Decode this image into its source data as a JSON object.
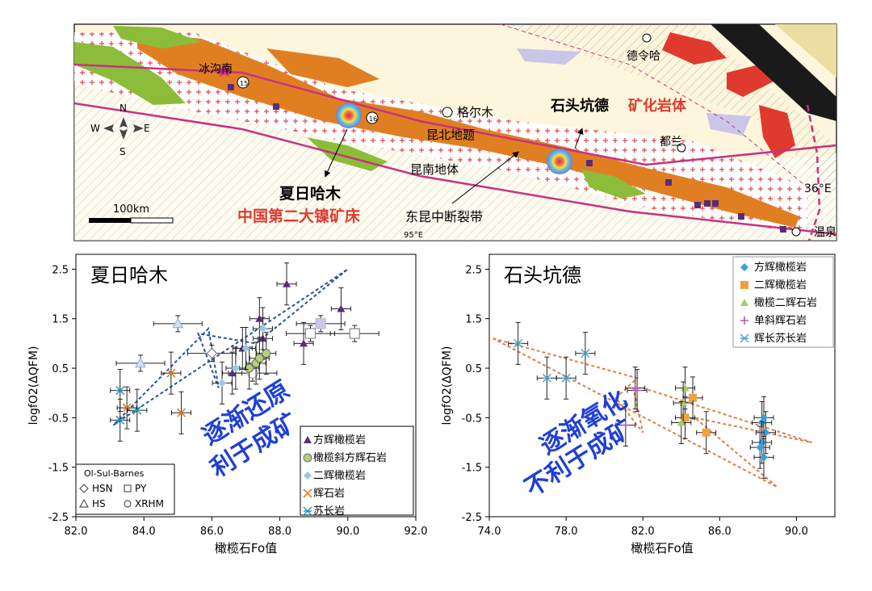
{
  "map": {
    "labels": {
      "binggounan": "冰沟南",
      "delingha": "德令哈",
      "geermu": "格尔木",
      "kunbei": "昆北地题",
      "kunnan": "昆南地体",
      "dulan": "都兰",
      "wenquan": "温泉",
      "shitoukengde": "石头坑德",
      "mineralized": "矿化岩体",
      "xiarihamu": "夏日哈木",
      "second_nickel": "中国第二大镍矿床",
      "fault": "东昆中断裂带",
      "lat": "36°E",
      "lon": "95°E",
      "scale": "100km",
      "n": "N",
      "s": "S",
      "e": "E",
      "w": "W",
      "num15": "15",
      "num16": "16"
    }
  },
  "colors": {
    "orange": "#e07f22",
    "green": "#8cbd3a",
    "red": "#e03a2e",
    "purple": "#5b2b7a",
    "blue_dash": "#2a4fa0",
    "orange_dash": "#e07f4a",
    "magenta": "#c8327e",
    "arrow_text": "#1f3fd6",
    "cream": "#fdf6dc"
  },
  "chart_data": [
    {
      "type": "scatter",
      "title": "夏日哈木",
      "xlabel": "橄榄石Fo值",
      "ylabel": "logfO2(ΔQFM)",
      "xlim": [
        82.0,
        92.0
      ],
      "ylim": [
        -2.5,
        2.8
      ],
      "xticks": [
        "82.0",
        "84.0",
        "86.0",
        "88.0",
        "90.0",
        "92.0"
      ],
      "yticks": [
        "2.5",
        "1.5",
        "0.5",
        "-0.5",
        "-1.5",
        "-2.5"
      ],
      "annotation": [
        "逐渐还原",
        "利于成矿"
      ],
      "legend": [
        "方辉橄榄岩",
        "橄榄斜方辉石岩",
        "二辉橄榄岩",
        "辉石岩",
        "苏长岩"
      ],
      "ref_legend": {
        "title": "Ol-Sul-Barnes",
        "items": [
          "HSN",
          "PY",
          "HS",
          "XRHM"
        ]
      },
      "series": [
        {
          "name": "方辉橄榄岩",
          "points": [
            [
              88.2,
              2.2
            ],
            [
              87.4,
              1.5
            ],
            [
              89.8,
              1.7
            ],
            [
              86.9,
              0.9
            ],
            [
              88.7,
              1.0
            ],
            [
              86.6,
              0.4
            ],
            [
              87.5,
              1.1
            ]
          ]
        },
        {
          "name": "橄榄斜方辉石岩",
          "points": [
            [
              87.3,
              0.6
            ],
            [
              87.6,
              0.8
            ],
            [
              87.1,
              0.5
            ],
            [
              87.4,
              0.7
            ]
          ]
        },
        {
          "name": "二辉橄榄岩",
          "points": [
            [
              86.3,
              0.2
            ],
            [
              86.7,
              0.5
            ],
            [
              87.0,
              0.9
            ],
            [
              87.5,
              1.3
            ]
          ]
        },
        {
          "name": "辉石岩",
          "points": [
            [
              84.8,
              0.4
            ],
            [
              83.5,
              -0.3
            ],
            [
              85.1,
              -0.4
            ]
          ]
        },
        {
          "name": "苏长岩",
          "points": [
            [
              83.3,
              -0.55
            ],
            [
              83.3,
              0.05
            ],
            [
              83.8,
              -0.35
            ]
          ]
        }
      ],
      "refs": [
        {
          "name": "HS",
          "points": [
            [
              85.0,
              1.4
            ],
            [
              83.9,
              0.6
            ]
          ]
        },
        {
          "name": "HSN",
          "points": [
            [
              86.0,
              0.8
            ]
          ]
        },
        {
          "name": "PY",
          "points": [
            [
              88.9,
              1.2
            ],
            [
              90.2,
              1.2
            ]
          ]
        },
        {
          "name": "PY_filled",
          "points": [
            [
              89.2,
              1.4
            ]
          ]
        },
        {
          "name": "XRHM",
          "points": [
            [
              87.2,
              0.4
            ]
          ]
        }
      ],
      "trend": [
        [
          83.1,
          -0.65
        ],
        [
          90.0,
          2.5
        ],
        [
          87.3,
          1.0
        ],
        [
          85.6,
          1.2
        ],
        [
          86.2,
          0.1
        ],
        [
          85.9,
          1.3
        ],
        [
          83.1,
          -0.65
        ]
      ]
    },
    {
      "type": "scatter",
      "title": "石头坑德",
      "xlabel": "橄榄石Fo值",
      "ylabel": "logfO2(ΔQFM)",
      "xlim": [
        74.0,
        92.0
      ],
      "ylim": [
        -2.5,
        2.8
      ],
      "xticks": [
        "74.0",
        "78.0",
        "82.0",
        "86.0",
        "90.0"
      ],
      "yticks": [
        "2.5",
        "1.5",
        "0.5",
        "-0.5",
        "-1.5",
        "-2.5"
      ],
      "annotation": [
        "逐渐氧化",
        "不利于成矿"
      ],
      "legend": [
        "方辉橄榄岩",
        "二辉橄榄岩",
        "橄榄二辉石岩",
        "单斜辉石岩",
        "辉长苏长岩"
      ],
      "series": [
        {
          "name": "方辉橄榄岩",
          "points": [
            [
              88.2,
              -0.6
            ],
            [
              88.4,
              -0.8
            ],
            [
              88.2,
              -1.0
            ],
            [
              88.3,
              -1.3
            ],
            [
              88.1,
              -1.1
            ],
            [
              88.3,
              -0.5
            ]
          ]
        },
        {
          "name": "二辉橄榄岩",
          "points": [
            [
              84.6,
              -0.1
            ],
            [
              84.2,
              -0.5
            ],
            [
              85.3,
              -0.8
            ]
          ]
        },
        {
          "name": "橄榄二辉石岩",
          "points": [
            [
              84.2,
              0.1
            ],
            [
              84.1,
              -0.2
            ],
            [
              84.0,
              -0.6
            ]
          ]
        },
        {
          "name": "单斜辉石岩",
          "points": [
            [
              81.7,
              0.05
            ],
            [
              81.6,
              0.1
            ],
            [
              81.1,
              -0.65
            ]
          ]
        },
        {
          "name": "辉长苏长岩",
          "points": [
            [
              75.5,
              1.0
            ],
            [
              77.0,
              0.3
            ],
            [
              78.0,
              0.3
            ],
            [
              79.0,
              0.8
            ]
          ]
        }
      ],
      "trend": [
        [
          74.2,
          1.1
        ],
        [
          81.7,
          0.3
        ],
        [
          80.6,
          -0.1
        ],
        [
          82.0,
          -0.8
        ],
        [
          81.5,
          0.1
        ],
        [
          82.0,
          0.1
        ],
        [
          90.8,
          -1.0
        ],
        [
          84.7,
          -0.5
        ],
        [
          89.0,
          -1.9
        ],
        [
          74.2,
          1.1
        ]
      ]
    }
  ]
}
